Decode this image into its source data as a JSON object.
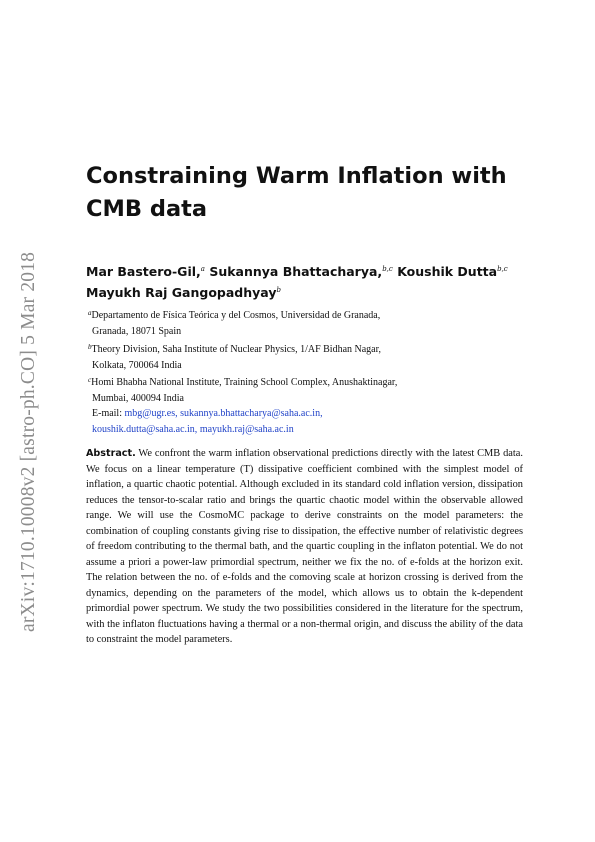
{
  "side_identifier": "arXiv:1710.10008v2  [astro-ph.CO]  5 Mar 2018",
  "title": {
    "line1": "Constraining Warm Inflation with",
    "line2": "CMB data"
  },
  "authors": [
    {
      "name": "Mar Bastero-Gil,",
      "affil": "a"
    },
    {
      "name": "Sukannya Bhattacharya,",
      "affil": "b,c"
    },
    {
      "name": "Koushik Dutta",
      "affil": "b,c"
    },
    {
      "name": "Mayukh Raj Gangopadhyay",
      "affil": "b"
    }
  ],
  "affiliations": [
    {
      "marker": "a",
      "line1": "Departamento de Física Teórica y del Cosmos, Universidad de Granada,",
      "line2": "Granada, 18071 Spain"
    },
    {
      "marker": "b",
      "line1": "Theory Division, Saha Institute of Nuclear Physics, 1/AF Bidhan Nagar,",
      "line2": "Kolkata, 700064 India"
    },
    {
      "marker": "c",
      "line1": "Homi Bhabha National Institute, Training School Complex, Anushaktinagar,",
      "line2": "Mumbai, 400094 India"
    }
  ],
  "email": {
    "label": "E-mail:",
    "addresses": [
      "mbg@ugr.es,",
      "sukannya.bhattacharya@saha.ac.in,",
      "koushik.dutta@saha.ac.in,",
      "mayukh.raj@saha.ac.in"
    ]
  },
  "abstract": {
    "label": "Abstract.",
    "text": "We confront the warm inflation observational predictions directly with the latest CMB data. We focus on a linear temperature (T) dissipative coefficient combined with the simplest model of inflation, a quartic chaotic potential. Although excluded in its standard cold inflation version, dissipation reduces the tensor-to-scalar ratio and brings the quartic chaotic model within the observable allowed range. We will use the CosmoMC package to derive constraints on the model parameters: the combination of coupling constants giving rise to dissipation, the effective number of relativistic degrees of freedom contributing to the thermal bath, and the quartic coupling in the inflaton potential. We do not assume a priori a power-law primordial spectrum, neither we fix the no. of e-folds at the horizon exit. The relation between the no. of e-folds and the comoving scale at horizon crossing is derived from the dynamics, depending on the parameters of the model, which allows us to obtain the k-dependent primordial power spectrum. We study the two possibilities considered in the literature for the spectrum, with the inflaton fluctuations having a thermal or a non-thermal origin, and discuss the ability of the data to constraint the model parameters."
  }
}
